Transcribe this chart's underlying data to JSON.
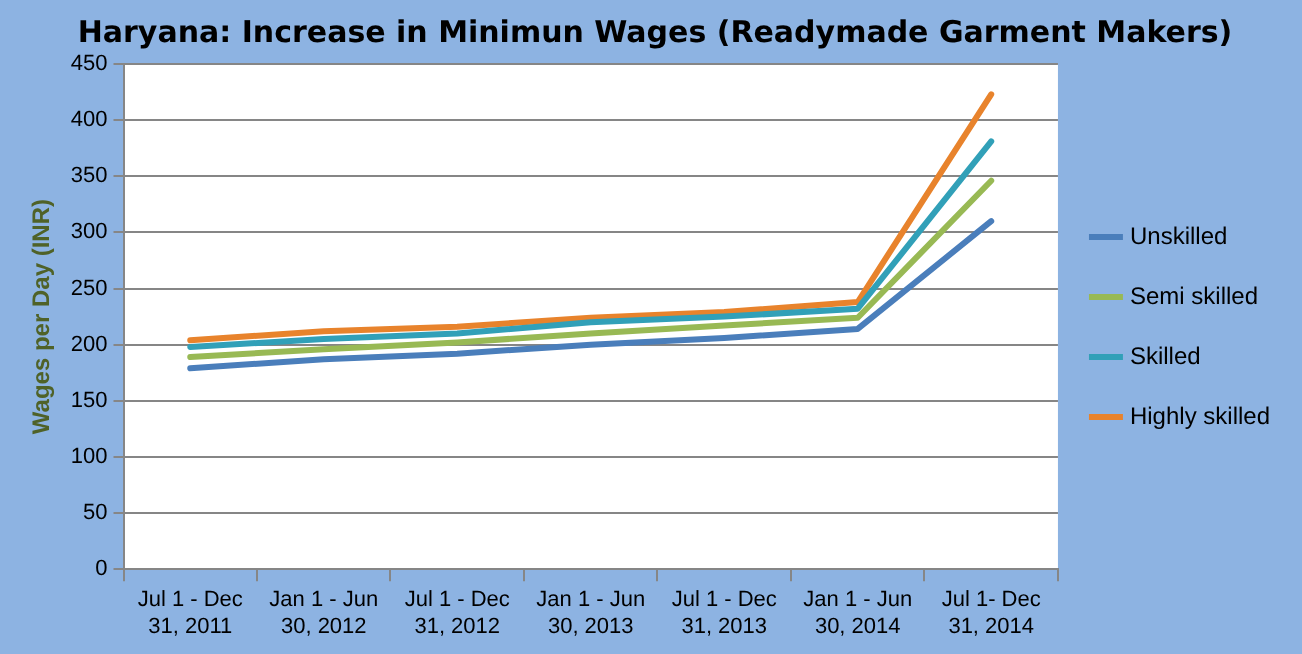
{
  "chart_data": {
    "type": "line",
    "title": "Haryana: Increase in Minimun Wages (Readymade Garment Makers)",
    "ylabel": "Wages per Day (INR)",
    "categories": [
      "Jul 1 - Dec 31, 2011",
      "Jan 1 - Jun 30, 2012",
      "Jul 1 - Dec 31, 2012",
      "Jan 1 - Jun 30, 2013",
      "Jul 1 - Dec 31, 2013",
      "Jan 1 - Jun 30, 2014",
      "Jul 1- Dec 31, 2014"
    ],
    "series": [
      {
        "name": "Unskilled",
        "color": "#4a7ebb",
        "values": [
          179,
          187,
          192,
          200,
          206,
          214,
          310
        ]
      },
      {
        "name": "Semi skilled",
        "color": "#98b954",
        "values": [
          189,
          196,
          202,
          210,
          217,
          224,
          346
        ]
      },
      {
        "name": "Skilled",
        "color": "#31a0b8",
        "values": [
          198,
          205,
          210,
          220,
          225,
          232,
          381
        ]
      },
      {
        "name": "Highly skilled",
        "color": "#e8832c",
        "values": [
          204,
          212,
          216,
          224,
          229,
          238,
          423
        ]
      }
    ],
    "ylim": [
      0,
      450
    ],
    "yticks": [
      0,
      50,
      100,
      150,
      200,
      250,
      300,
      350,
      400,
      450
    ],
    "grid": "y",
    "legend": "right",
    "marker": "none",
    "line_style": "solid"
  }
}
